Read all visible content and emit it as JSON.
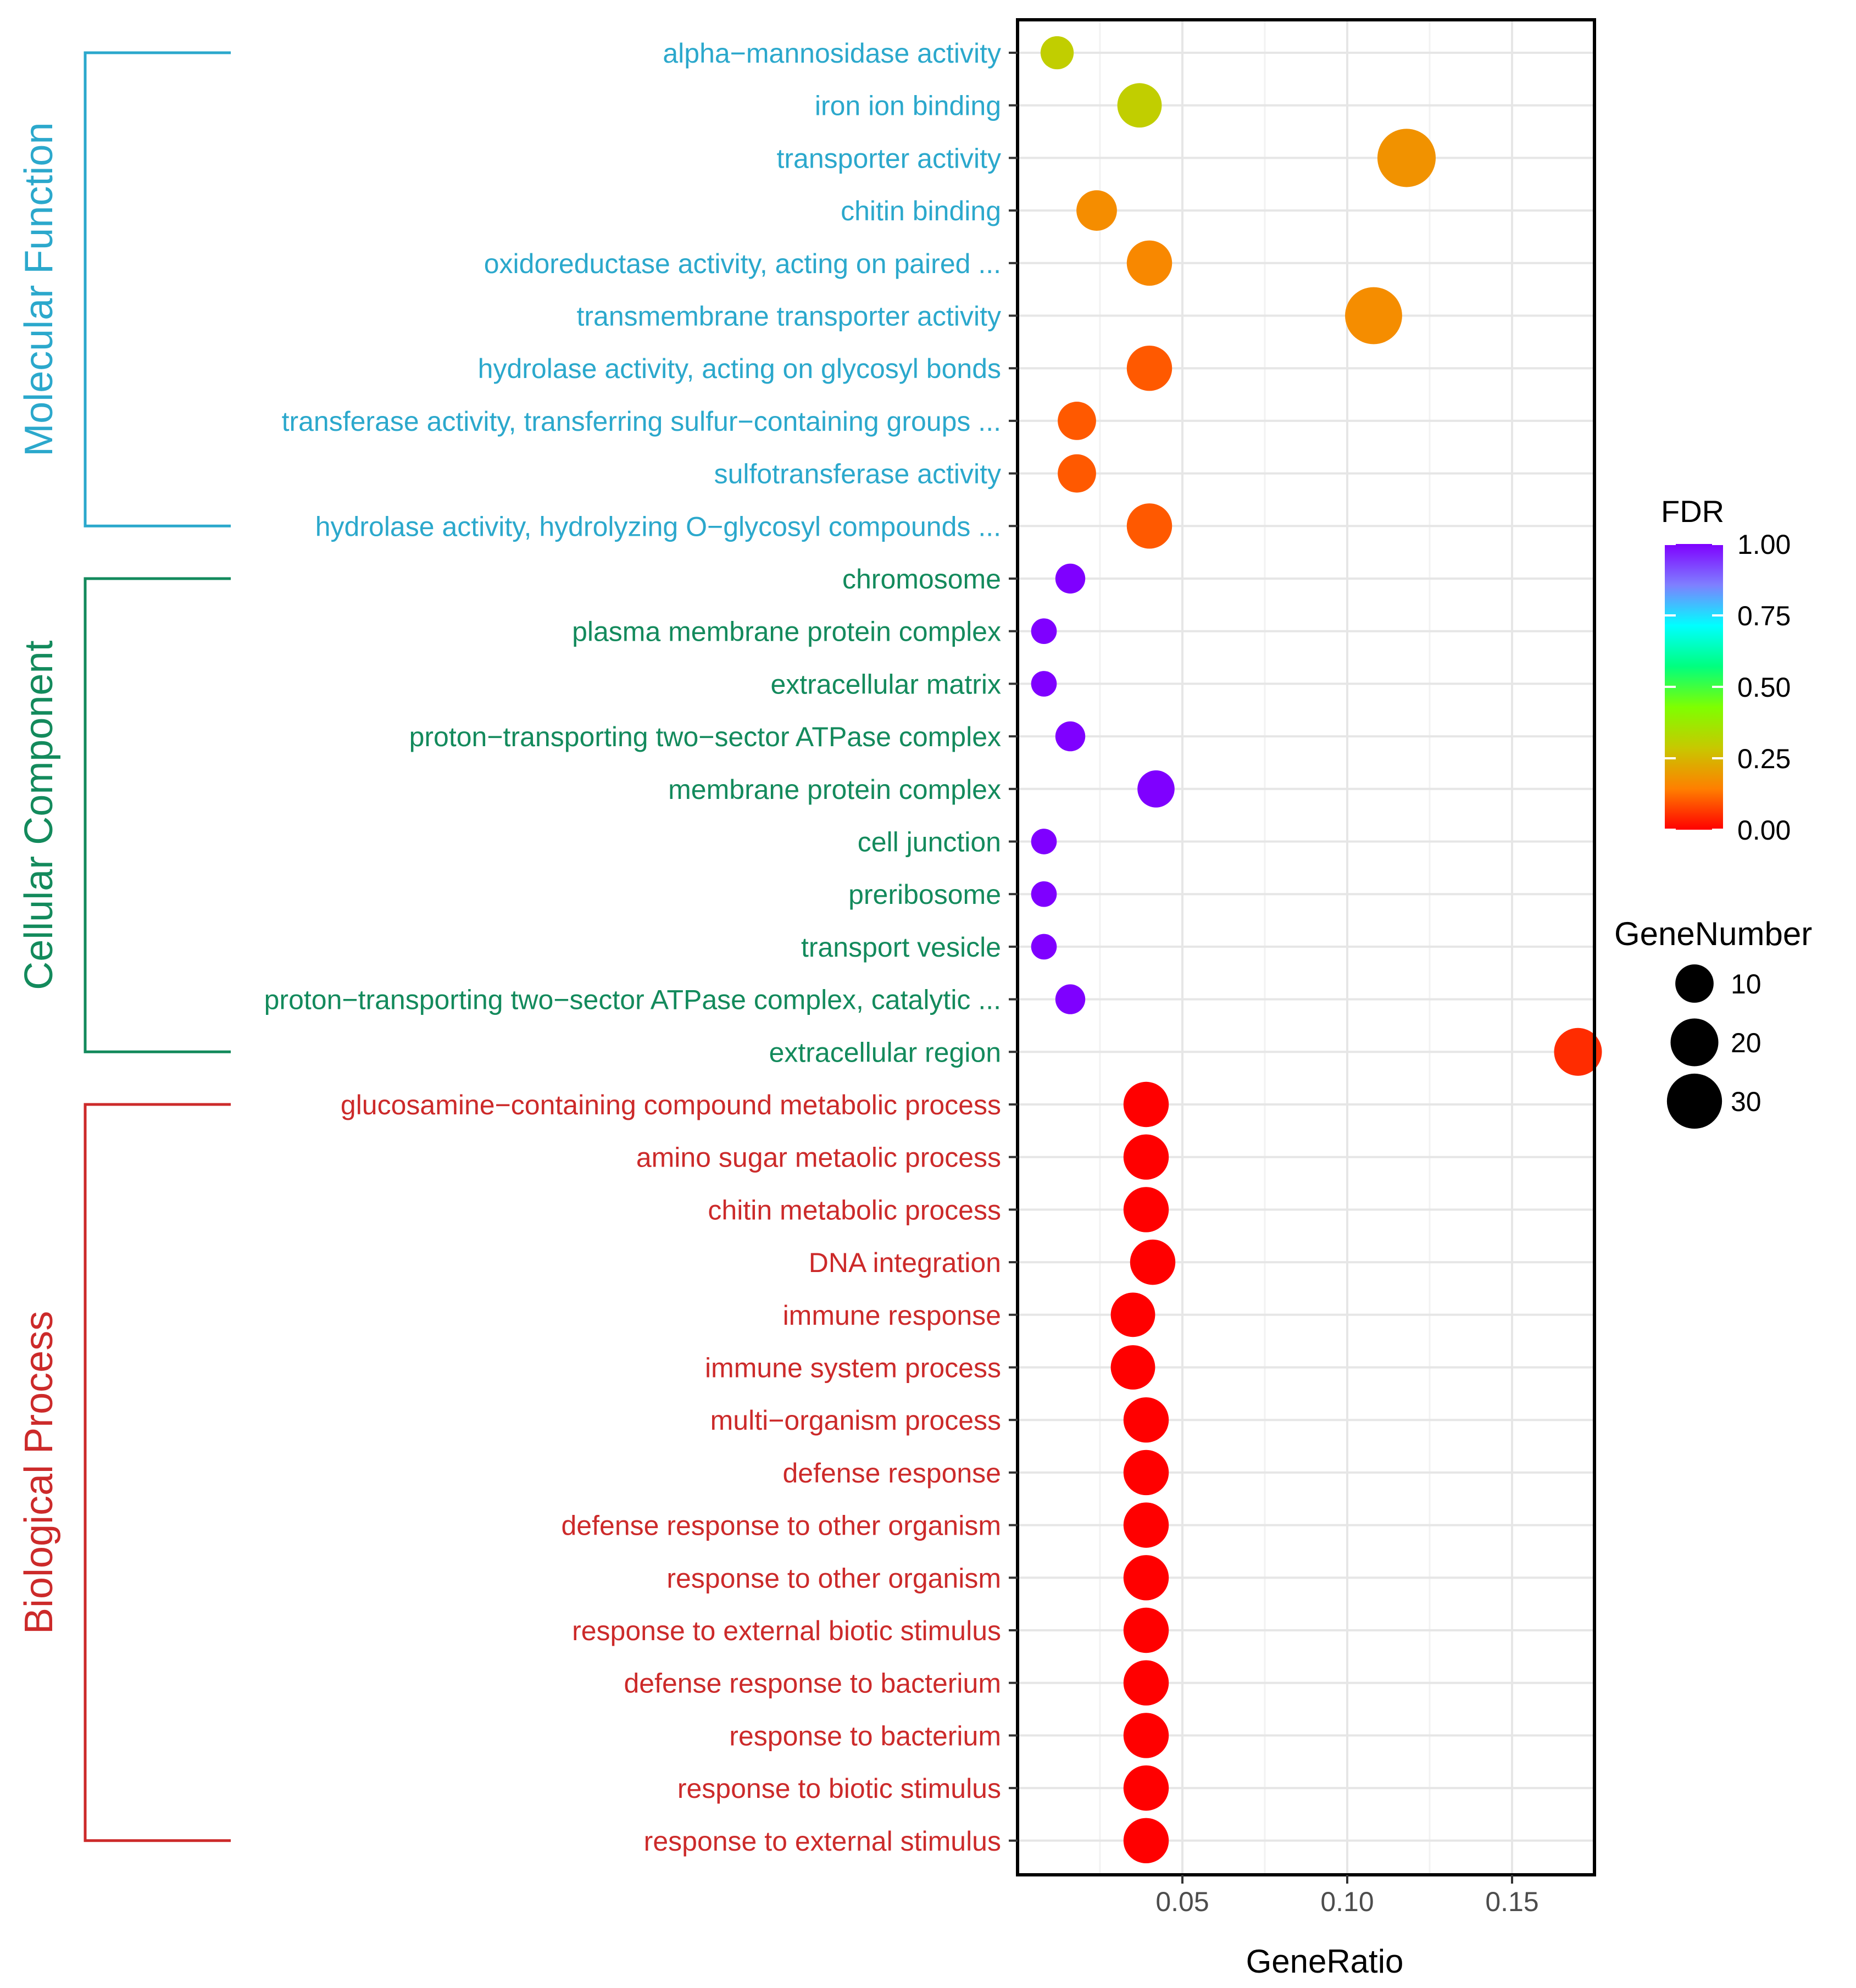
{
  "chart_data": {
    "type": "scatter",
    "subtype": "bubble",
    "xlabel": "GeneRatio",
    "x_ticks": [
      0.05,
      0.1,
      0.15
    ],
    "x_tick_labels": [
      "0.05",
      "0.10",
      "0.15"
    ],
    "xlim": [
      0.0,
      0.175
    ],
    "grid": true,
    "groups": [
      {
        "name": "Molecular Function",
        "color": "#2ba8cc",
        "terms": [
          {
            "label": "alpha−mannosidase activity",
            "gene_ratio": 0.012,
            "gene_number": 6,
            "fdr": 0.3
          },
          {
            "label": "iron ion binding",
            "gene_ratio": 0.037,
            "gene_number": 16,
            "fdr": 0.3
          },
          {
            "label": "transporter activity",
            "gene_ratio": 0.118,
            "gene_number": 35,
            "fdr": 0.18
          },
          {
            "label": "chitin binding",
            "gene_ratio": 0.024,
            "gene_number": 12,
            "fdr": 0.17
          },
          {
            "label": "oxidoreductase activity, acting on paired ...",
            "gene_ratio": 0.04,
            "gene_number": 17,
            "fdr": 0.16
          },
          {
            "label": "transmembrane transporter activity",
            "gene_ratio": 0.108,
            "gene_number": 33,
            "fdr": 0.17
          },
          {
            "label": "hydrolase activity, acting on glycosyl bonds",
            "gene_ratio": 0.04,
            "gene_number": 17,
            "fdr": 0.1
          },
          {
            "label": "transferase activity, transferring sulfur−containing groups ...",
            "gene_ratio": 0.018,
            "gene_number": 10,
            "fdr": 0.1
          },
          {
            "label": "sulfotransferase activity",
            "gene_ratio": 0.018,
            "gene_number": 10,
            "fdr": 0.1
          },
          {
            "label": "hydrolase activity, hydrolyzing O−glycosyl compounds ...",
            "gene_ratio": 0.04,
            "gene_number": 17,
            "fdr": 0.1
          }
        ]
      },
      {
        "name": "Cellular Component",
        "color": "#138a5c",
        "terms": [
          {
            "label": "chromosome",
            "gene_ratio": 0.016,
            "gene_number": 4,
            "fdr": 1.0
          },
          {
            "label": "plasma membrane protein complex",
            "gene_ratio": 0.008,
            "gene_number": 2,
            "fdr": 1.0
          },
          {
            "label": "extracellular matrix",
            "gene_ratio": 0.008,
            "gene_number": 2,
            "fdr": 1.0
          },
          {
            "label": "proton−transporting two−sector ATPase complex",
            "gene_ratio": 0.016,
            "gene_number": 4,
            "fdr": 1.0
          },
          {
            "label": "membrane protein complex",
            "gene_ratio": 0.042,
            "gene_number": 9,
            "fdr": 1.0
          },
          {
            "label": "cell junction",
            "gene_ratio": 0.008,
            "gene_number": 2,
            "fdr": 1.0
          },
          {
            "label": "preribosome",
            "gene_ratio": 0.008,
            "gene_number": 2,
            "fdr": 1.0
          },
          {
            "label": "transport vesicle",
            "gene_ratio": 0.008,
            "gene_number": 2,
            "fdr": 1.0
          },
          {
            "label": "proton−transporting two−sector ATPase complex, catalytic ...",
            "gene_ratio": 0.016,
            "gene_number": 4,
            "fdr": 1.0
          },
          {
            "label": "extracellular region",
            "gene_ratio": 0.17,
            "gene_number": 20,
            "fdr": 0.05
          }
        ]
      },
      {
        "name": "Biological Process",
        "color": "#cc2a2a",
        "terms": [
          {
            "label": "glucosamine−containing compound metabolic process",
            "gene_ratio": 0.039,
            "gene_number": 17,
            "fdr": 0.0
          },
          {
            "label": "amino sugar metaolic process",
            "gene_ratio": 0.039,
            "gene_number": 17,
            "fdr": 0.0
          },
          {
            "label": "chitin metabolic process",
            "gene_ratio": 0.039,
            "gene_number": 17,
            "fdr": 0.0
          },
          {
            "label": "DNA integration",
            "gene_ratio": 0.041,
            "gene_number": 17,
            "fdr": 0.0
          },
          {
            "label": "immune response",
            "gene_ratio": 0.035,
            "gene_number": 16,
            "fdr": 0.0
          },
          {
            "label": "immune system process",
            "gene_ratio": 0.035,
            "gene_number": 16,
            "fdr": 0.0
          },
          {
            "label": "multi−organism process",
            "gene_ratio": 0.039,
            "gene_number": 17,
            "fdr": 0.0
          },
          {
            "label": "defense response",
            "gene_ratio": 0.039,
            "gene_number": 17,
            "fdr": 0.0
          },
          {
            "label": "defense response to other organism",
            "gene_ratio": 0.039,
            "gene_number": 17,
            "fdr": 0.0
          },
          {
            "label": "response to other organism",
            "gene_ratio": 0.039,
            "gene_number": 17,
            "fdr": 0.0
          },
          {
            "label": "response to external biotic stimulus",
            "gene_ratio": 0.039,
            "gene_number": 17,
            "fdr": 0.0
          },
          {
            "label": "defense response to bacterium",
            "gene_ratio": 0.039,
            "gene_number": 17,
            "fdr": 0.0
          },
          {
            "label": "response to bacterium",
            "gene_ratio": 0.039,
            "gene_number": 17,
            "fdr": 0.0
          },
          {
            "label": "response to biotic stimulus",
            "gene_ratio": 0.039,
            "gene_number": 17,
            "fdr": 0.0
          },
          {
            "label": "response to external stimulus",
            "gene_ratio": 0.039,
            "gene_number": 17,
            "fdr": 0.0
          }
        ]
      }
    ],
    "legend_color": {
      "title": "FDR",
      "ticks": [
        1.0,
        0.75,
        0.5,
        0.25,
        0.0
      ],
      "tick_labels": [
        "1.00",
        "0.75",
        "0.50",
        "0.25",
        "0.00"
      ],
      "placement": "right",
      "colors": [
        "#ff0000",
        "#ff7f00",
        "#c8c800",
        "#7fff00",
        "#00ff7f",
        "#00ffff",
        "#7f7fff",
        "#7f00ff"
      ]
    },
    "legend_size": {
      "title": "GeneNumber",
      "values": [
        10,
        20,
        30
      ],
      "labels": [
        "10",
        "20",
        "30"
      ],
      "placement": "right"
    }
  }
}
